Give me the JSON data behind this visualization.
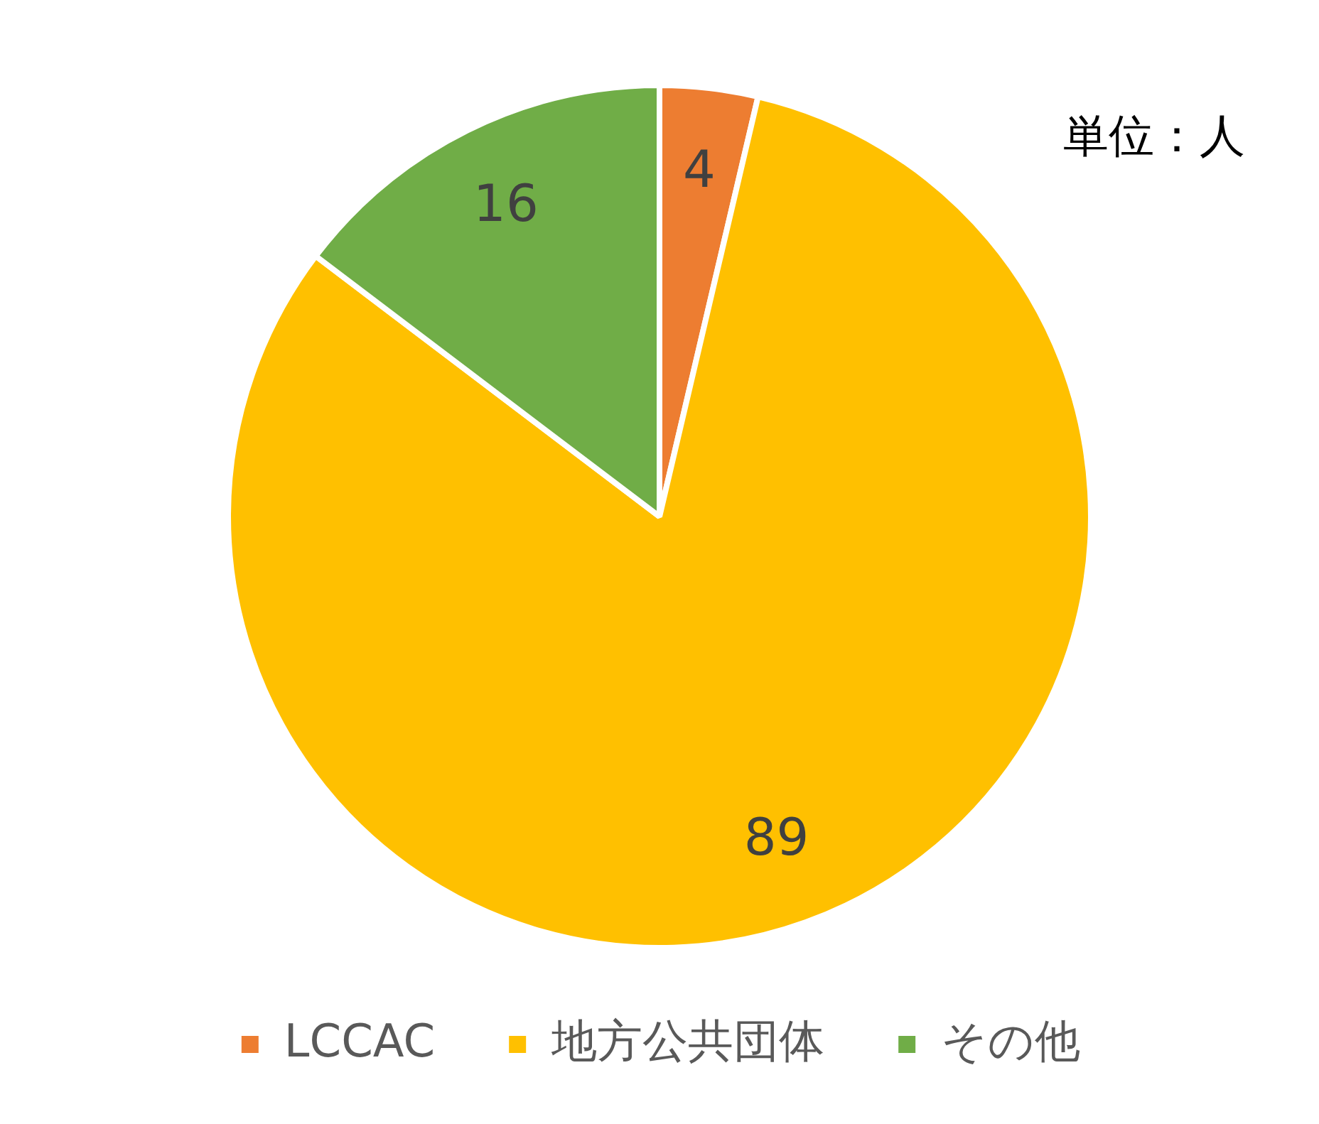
{
  "chart_data": {
    "type": "pie",
    "categories": [
      "LCCAC",
      "地方公共団体",
      "その他"
    ],
    "values": [
      4,
      89,
      16
    ],
    "colors": [
      "#ed7d31",
      "#ffc000",
      "#70ad47"
    ],
    "data_labels": true,
    "legend": "bottom",
    "annotations": [
      "単位：人"
    ]
  }
}
